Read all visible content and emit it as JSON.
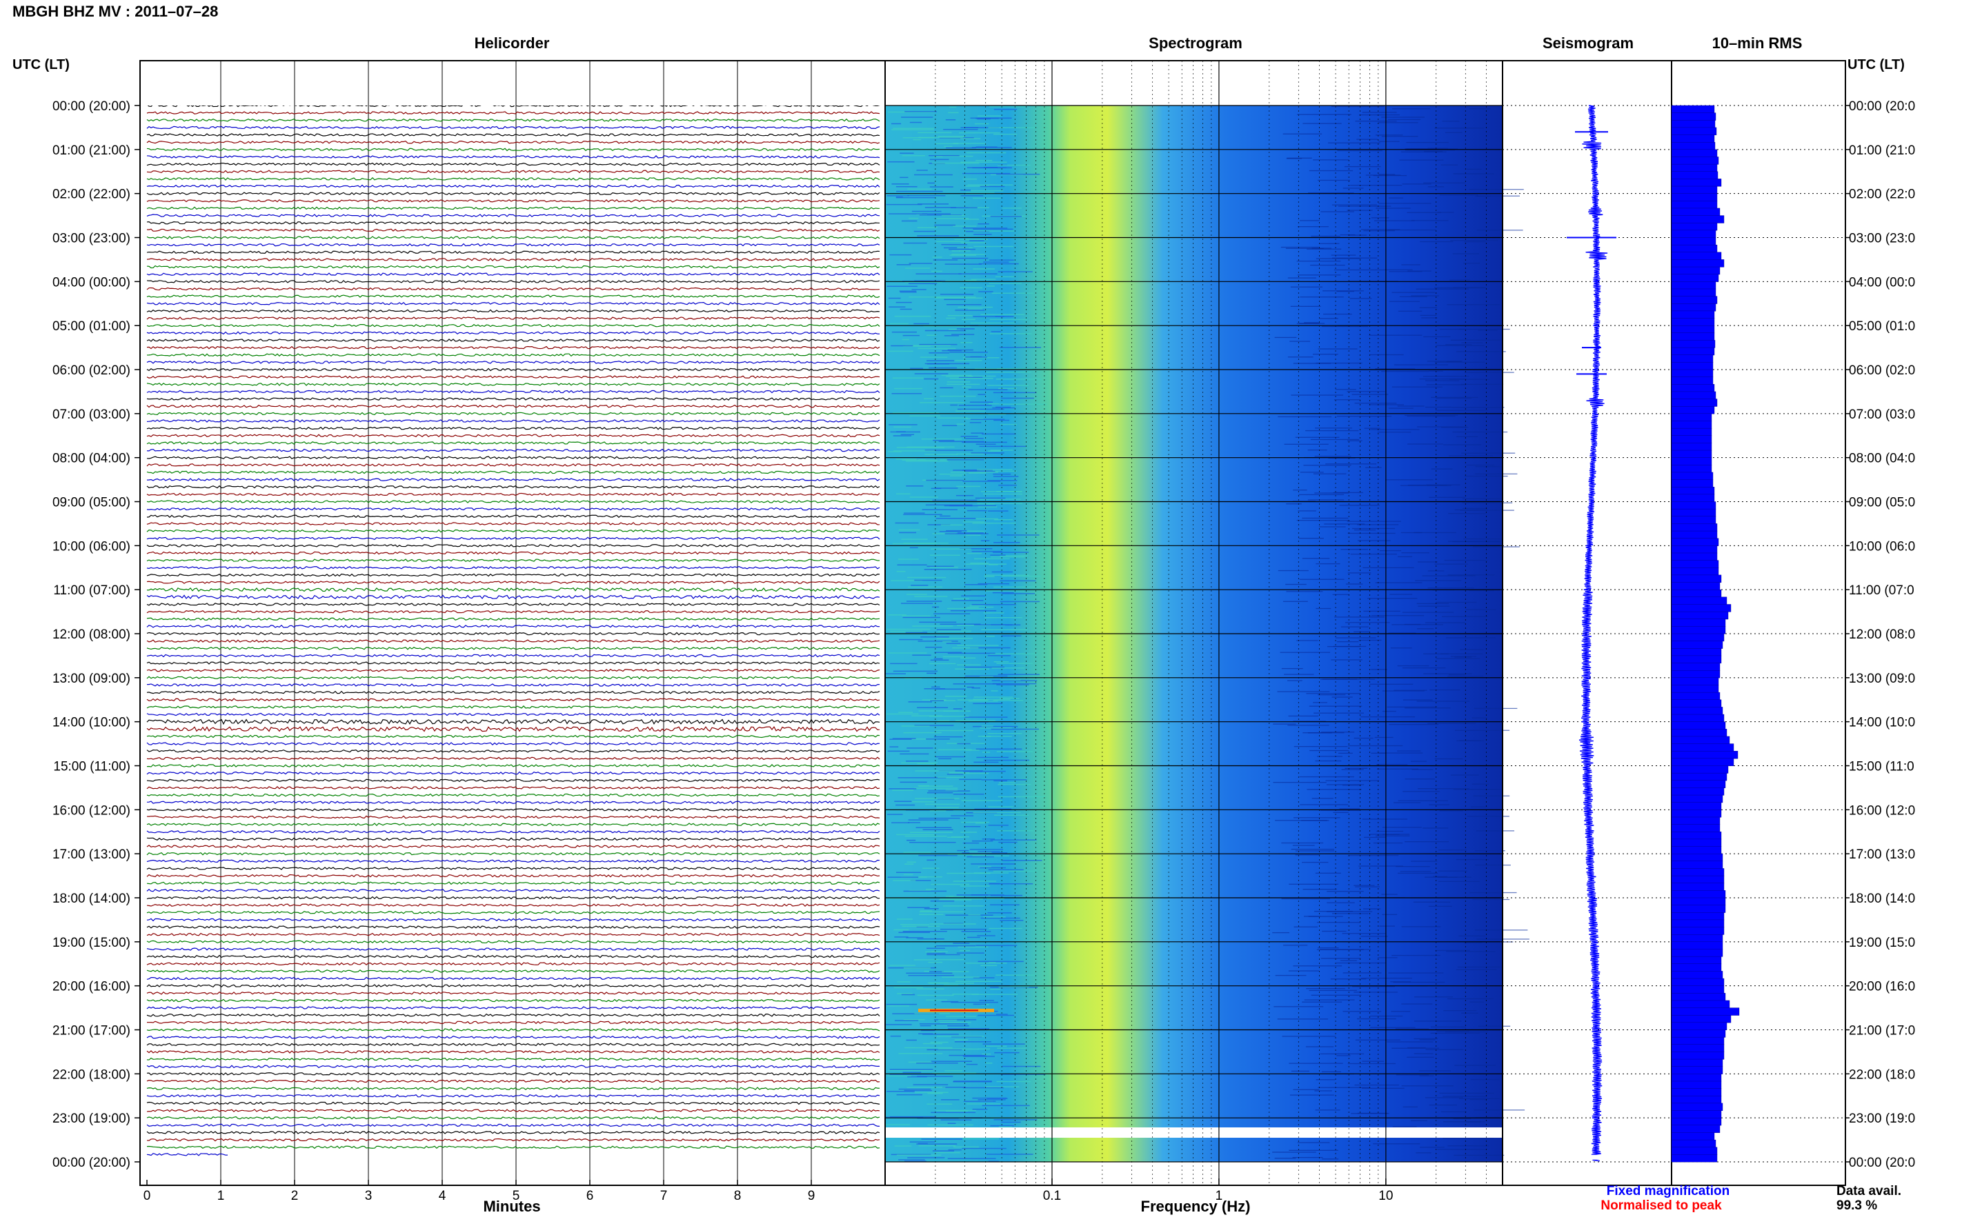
{
  "header": {
    "station_title": "MBGH BHZ MV : 2011–07–28",
    "left_time_label": "UTC (LT)",
    "right_time_label": "UTC (LT)"
  },
  "panels": {
    "helicorder": "Helicorder",
    "spectrogram": "Spectrogram",
    "seismogram": "Seismogram",
    "rms": "10–min RMS"
  },
  "time_ticks": [
    "00:00 (20:00)",
    "01:00 (21:00)",
    "02:00 (22:00)",
    "03:00 (23:00)",
    "04:00 (00:00)",
    "05:00 (01:00)",
    "06:00 (02:00)",
    "07:00 (03:00)",
    "08:00 (04:00)",
    "09:00 (05:00)",
    "10:00 (06:00)",
    "11:00 (07:00)",
    "12:00 (08:00)",
    "13:00 (09:00)",
    "14:00 (10:00)",
    "15:00 (11:00)",
    "16:00 (12:00)",
    "17:00 (13:00)",
    "18:00 (14:00)",
    "19:00 (15:00)",
    "20:00 (16:00)",
    "21:00 (17:00)",
    "22:00 (18:00)",
    "23:00 (19:00)",
    "00:00 (20:00)"
  ],
  "right_time_ticks": [
    "00:00 (20:0",
    "01:00 (21:0",
    "02:00 (22:0",
    "03:00 (23:0",
    "04:00 (00:0",
    "05:00 (01:0",
    "06:00 (02:0",
    "07:00 (03:0",
    "08:00 (04:0",
    "09:00 (05:0",
    "10:00 (06:0",
    "11:00 (07:0",
    "12:00 (08:0",
    "13:00 (09:0",
    "14:00 (10:0",
    "15:00 (11:0",
    "16:00 (12:0",
    "17:00 (13:0",
    "18:00 (14:0",
    "19:00 (15:0",
    "20:00 (16:0",
    "21:00 (17:0",
    "22:00 (18:0",
    "23:00 (19:0",
    "00:00 (20:0"
  ],
  "footer": {
    "fixed_magnification": "Fixed magnification",
    "normalised_to_peak": "Normalised to peak",
    "data_avail_label": "Data avail.",
    "data_avail_value": "99.3 %"
  },
  "colors": {
    "helicorder_trace_cycle": [
      "#000000",
      "#8b0000",
      "#008000",
      "#0000cc"
    ],
    "fixed_magnification": "#0000ff",
    "normalised_to_peak": "#ff0000",
    "seismogram": "#0000ff",
    "rms_bars": "#0000ff",
    "spectrogram_colormap": "jet"
  },
  "chart_data": [
    {
      "type": "line",
      "panel": "helicorder",
      "xlabel": "Minutes",
      "xlim": [
        0,
        10
      ],
      "x_ticks": [
        "0",
        "1",
        "2",
        "3",
        "4",
        "5",
        "6",
        "7",
        "8",
        "9"
      ],
      "rows_per_hour": 6,
      "minutes_per_row": 10,
      "total_rows": 144,
      "data_gap_after_minute_in_last_row": 1.1
    },
    {
      "type": "heatmap",
      "panel": "spectrogram",
      "xlabel": "Frequency (Hz)",
      "x_scale": "log",
      "xlim": [
        0.01,
        50
      ],
      "x_ticks": [
        {
          "value": 0.1,
          "label": "0.1"
        },
        {
          "value": 1,
          "label": "1"
        },
        {
          "value": 10,
          "label": "10"
        }
      ],
      "dominant_band_hz": [
        0.15,
        0.4
      ],
      "data_gap_hours": [
        23.833,
        23.95
      ]
    },
    {
      "type": "line",
      "panel": "seismogram",
      "note_values": "relative amplitude per 10-min row (0-1)",
      "rows_amplitude_relative": [
        0.3,
        0.3,
        0.3,
        0.3,
        0.3,
        0.9,
        0.3,
        0.3,
        0.3,
        0.3,
        0.3,
        0.3,
        0.3,
        0.3,
        0.6,
        0.3,
        0.3,
        0.3,
        0.3,
        0.3,
        0.9,
        0.3,
        0.3,
        0.3,
        0.3,
        0.3,
        0.3,
        0.3,
        0.3,
        0.3,
        0.3,
        0.3,
        0.3,
        0.3,
        0.3,
        0.3,
        0.3,
        0.3,
        0.3,
        0.3,
        0.8,
        0.3,
        0.3,
        0.3,
        0.3,
        0.3,
        0.3,
        0.3,
        0.3,
        0.3,
        0.3,
        0.3,
        0.3,
        0.3,
        0.3,
        0.3,
        0.3,
        0.3,
        0.3,
        0.3,
        0.3,
        0.3,
        0.3,
        0.3,
        0.3,
        0.3,
        0.4,
        0.4,
        0.4,
        0.4,
        0.4,
        0.4,
        0.4,
        0.4,
        0.4,
        0.4,
        0.4,
        0.4,
        0.4,
        0.4,
        0.4,
        0.4,
        0.4,
        0.4,
        0.4,
        0.5,
        0.6,
        0.6,
        0.6,
        0.5,
        0.4,
        0.4,
        0.4,
        0.4,
        0.4,
        0.4,
        0.4,
        0.4,
        0.4,
        0.4,
        0.4,
        0.4,
        0.4,
        0.4,
        0.4,
        0.4,
        0.4,
        0.4,
        0.4,
        0.4,
        0.4,
        0.4,
        0.4,
        0.4,
        0.4,
        0.4,
        0.4,
        0.4,
        0.4,
        0.4,
        0.4,
        0.4,
        0.4,
        0.4,
        0.4,
        0.4,
        0.4,
        0.4,
        0.4,
        0.4,
        0.4,
        0.4,
        0.4,
        0.4,
        0.4,
        0.4,
        0.4,
        0.4,
        0.4,
        0.4,
        0.4,
        0.4,
        0.4,
        0.4
      ]
    },
    {
      "type": "bar",
      "panel": "rms",
      "orientation": "horizontal",
      "note_values": "relative RMS per 10-min interval (0-1)",
      "values": [
        0.62,
        0.64,
        0.63,
        0.65,
        0.62,
        0.63,
        0.66,
        0.68,
        0.66,
        0.67,
        0.72,
        0.66,
        0.66,
        0.66,
        0.7,
        0.76,
        0.66,
        0.64,
        0.64,
        0.66,
        0.72,
        0.76,
        0.7,
        0.68,
        0.64,
        0.64,
        0.66,
        0.64,
        0.62,
        0.62,
        0.62,
        0.62,
        0.63,
        0.62,
        0.6,
        0.6,
        0.6,
        0.6,
        0.62,
        0.64,
        0.66,
        0.62,
        0.58,
        0.58,
        0.58,
        0.58,
        0.58,
        0.58,
        0.58,
        0.58,
        0.6,
        0.6,
        0.62,
        0.62,
        0.64,
        0.64,
        0.64,
        0.66,
        0.66,
        0.68,
        0.66,
        0.66,
        0.68,
        0.68,
        0.72,
        0.7,
        0.72,
        0.8,
        0.86,
        0.82,
        0.78,
        0.78,
        0.76,
        0.74,
        0.72,
        0.72,
        0.7,
        0.7,
        0.68,
        0.68,
        0.7,
        0.72,
        0.74,
        0.76,
        0.78,
        0.8,
        0.84,
        0.9,
        0.96,
        0.9,
        0.82,
        0.8,
        0.78,
        0.76,
        0.74,
        0.72,
        0.72,
        0.7,
        0.7,
        0.72,
        0.72,
        0.72,
        0.74,
        0.74,
        0.76,
        0.76,
        0.76,
        0.78,
        0.78,
        0.78,
        0.76,
        0.76,
        0.76,
        0.74,
        0.74,
        0.74,
        0.72,
        0.72,
        0.74,
        0.76,
        0.76,
        0.78,
        0.84,
        0.98,
        0.86,
        0.8,
        0.78,
        0.76,
        0.76,
        0.76,
        0.74,
        0.74,
        0.72,
        0.72,
        0.72,
        0.72,
        0.74,
        0.72,
        0.72,
        0.7,
        0.62,
        0.64,
        0.66,
        0.66
      ]
    }
  ]
}
